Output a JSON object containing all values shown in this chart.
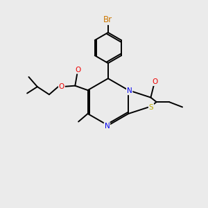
{
  "bg_color": "#ebebeb",
  "fig_size": [
    3.0,
    3.0
  ],
  "dpi": 100,
  "bond_color": "black",
  "bond_lw": 1.4,
  "atom_colors": {
    "N": "#0000ee",
    "O": "#ee0000",
    "S": "#bbaa00",
    "Br": "#cc7700",
    "C": "black"
  },
  "font_size": 7.5,
  "font_size_br": 8.5
}
